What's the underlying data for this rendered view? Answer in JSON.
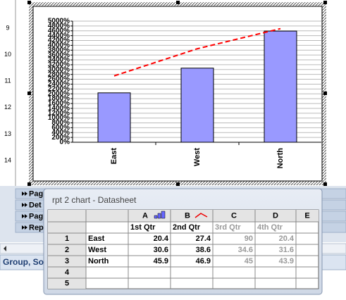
{
  "chart_data": {
    "type": "bar",
    "categories": [
      "East",
      "West",
      "North"
    ],
    "series": [
      {
        "name": "1st Qtr",
        "color": "#9999ff",
        "values": [
          20.4,
          30.6,
          45.9
        ]
      },
      {
        "name": "2nd Qtr",
        "color": "#ff0000",
        "type": "line",
        "values": [
          27.4,
          38.6,
          46.9
        ]
      }
    ],
    "ylim": [
      0,
      50
    ],
    "yticks": [
      {
        "value": 0,
        "label": "0%"
      },
      {
        "value": 2,
        "label": "200%"
      },
      {
        "value": 4,
        "label": "400%"
      },
      {
        "value": 6,
        "label": "600%"
      },
      {
        "value": 8,
        "label": "800%"
      },
      {
        "value": 10,
        "label": "1000%"
      },
      {
        "value": 12,
        "label": "1200%"
      },
      {
        "value": 14,
        "label": "1400%"
      },
      {
        "value": 16,
        "label": "1600%"
      },
      {
        "value": 18,
        "label": "1800%"
      },
      {
        "value": 20,
        "label": "2000%"
      },
      {
        "value": 22,
        "label": "2200%"
      },
      {
        "value": 24,
        "label": "2400%"
      },
      {
        "value": 26,
        "label": "2600%"
      },
      {
        "value": 28,
        "label": "2800%"
      },
      {
        "value": 30,
        "label": "3000%"
      },
      {
        "value": 32,
        "label": "3200%"
      },
      {
        "value": 34,
        "label": "3400%"
      },
      {
        "value": 36,
        "label": "3600%"
      },
      {
        "value": 38,
        "label": "3800%"
      },
      {
        "value": 40,
        "label": "4000%"
      },
      {
        "value": 42,
        "label": "4200%"
      },
      {
        "value": 44,
        "label": "4400%"
      },
      {
        "value": 46,
        "label": "4600%"
      },
      {
        "value": 48,
        "label": "4800%"
      },
      {
        "value": 50,
        "label": "5000%"
      }
    ],
    "grid": true
  },
  "ruler": [
    "9",
    "10",
    "11",
    "12",
    "13",
    "14"
  ],
  "sections": [
    "Pag",
    "Det",
    "Pag",
    "Rep"
  ],
  "group_panel": "Group, Sor",
  "datasheet": {
    "title": "rpt 2 chart - Datasheet",
    "column_letters": [
      "A",
      "B",
      "C",
      "D",
      "E"
    ],
    "column_names": [
      "1st Qtr",
      "2nd Qtr",
      "3rd Qtr",
      "4th Qtr"
    ],
    "row_numbers": [
      "1",
      "2",
      "3",
      "4",
      "5"
    ],
    "rows": [
      {
        "label": "East",
        "values": [
          "20.4",
          "27.4",
          "90",
          "20.4"
        ]
      },
      {
        "label": "West",
        "values": [
          "30.6",
          "38.6",
          "34.6",
          "31.6"
        ]
      },
      {
        "label": "North",
        "values": [
          "45.9",
          "46.9",
          "45",
          "43.9"
        ]
      }
    ]
  }
}
